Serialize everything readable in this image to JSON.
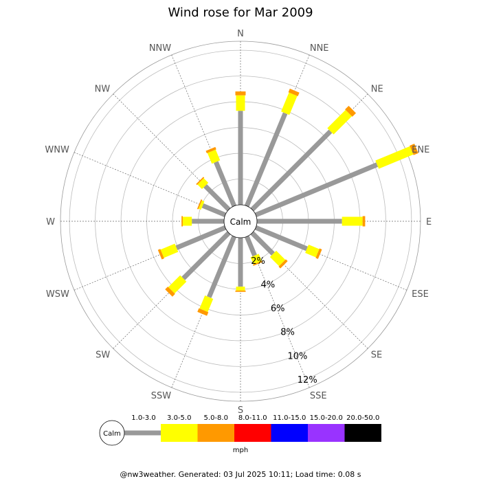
{
  "chart_data": {
    "type": "wind_rose",
    "title": "Wind rose for Mar 2009",
    "directions": [
      "N",
      "NNE",
      "NE",
      "ENE",
      "E",
      "ESE",
      "SE",
      "SSE",
      "S",
      "SSW",
      "SW",
      "WSW",
      "W",
      "WNW",
      "NW",
      "NNW"
    ],
    "ring_labels": [
      "2%",
      "4%",
      "6%",
      "8%",
      "10%",
      "12%"
    ],
    "ring_values": [
      2,
      4,
      6,
      8,
      10,
      12
    ],
    "calm_label": "Calm",
    "unit": "mph",
    "speed_bins": [
      {
        "label": "1.0-3.0",
        "color": "#999999"
      },
      {
        "label": "3.0-5.0",
        "color": "#ffff00"
      },
      {
        "label": "5.0-8.0",
        "color": "#ff9900"
      },
      {
        "label": "8.0-11.0",
        "color": "#ff0000"
      },
      {
        "label": "11.0-15.0",
        "color": "#0000ff"
      },
      {
        "label": "15.0-20.0",
        "color": "#9933ff"
      },
      {
        "label": "20.0-50.0",
        "color": "#000000"
      }
    ],
    "series": [
      {
        "direction": "N",
        "cumulative": [
          7.3,
          8.5,
          8.8
        ]
      },
      {
        "direction": "NNE",
        "cumulative": [
          7.8,
          9.4,
          9.7
        ]
      },
      {
        "direction": "NE",
        "cumulative": [
          8.6,
          10.6,
          11.0
        ]
      },
      {
        "direction": "ENE",
        "cumulative": [
          10.2,
          13.1,
          13.5
        ]
      },
      {
        "direction": "E",
        "cumulative": [
          6.6,
          8.2,
          8.4
        ]
      },
      {
        "direction": "ESE",
        "cumulative": [
          4.3,
          5.2,
          5.4
        ]
      },
      {
        "direction": "SE",
        "cumulative": [
          2.3,
          3.3,
          3.5
        ]
      },
      {
        "direction": "SSE",
        "cumulative": [
          1.6,
          2.2,
          2.3
        ]
      },
      {
        "direction": "S",
        "cumulative": [
          3.8,
          4.1,
          4.2
        ]
      },
      {
        "direction": "SSW",
        "cumulative": [
          5.1,
          6.2,
          6.5
        ]
      },
      {
        "direction": "SW",
        "cumulative": [
          5.0,
          6.3,
          6.6
        ]
      },
      {
        "direction": "WSW",
        "cumulative": [
          4.1,
          5.3,
          5.5
        ]
      },
      {
        "direction": "W",
        "cumulative": [
          2.5,
          3.2,
          3.3
        ]
      },
      {
        "direction": "WNW",
        "cumulative": [
          1.9,
          2.1,
          2.2
        ]
      },
      {
        "direction": "NW",
        "cumulative": [
          2.6,
          3.1,
          3.2
        ]
      },
      {
        "direction": "NNW",
        "cumulative": [
          3.7,
          4.6,
          4.8
        ]
      }
    ],
    "rmax": 12.7
  },
  "footer": "@nw3weather. Generated: 03 Jul 2025 10:11; Load time: 0.08 s"
}
